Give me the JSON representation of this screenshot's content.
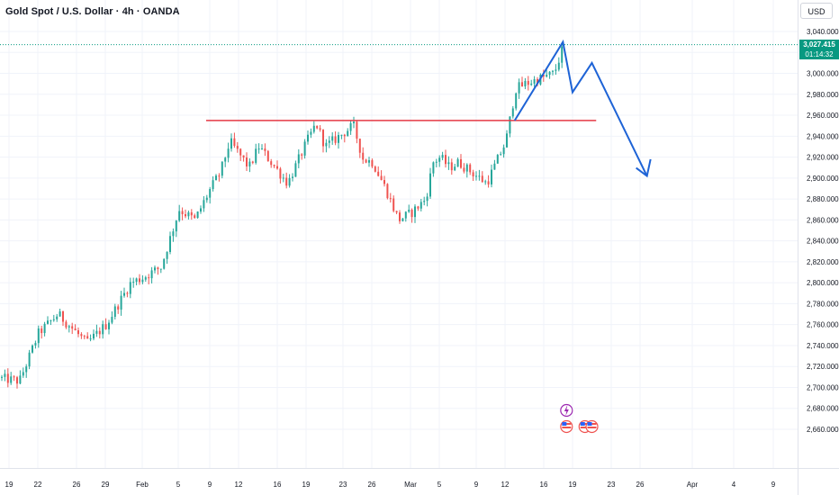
{
  "header": {
    "title": "Gold Spot / U.S. Dollar · 4h · OANDA",
    "currency_button": "USD"
  },
  "price_tag": {
    "price": "3,027.415",
    "countdown": "01:14:32"
  },
  "colors": {
    "up": "#26a69a",
    "down": "#ef5350",
    "projection": "#1e63d6",
    "resistance": "#e53945",
    "price_line": "#089981",
    "grid": "#f0f3fa"
  },
  "chart_data": {
    "type": "candlestick",
    "symbol": "XAUUSD",
    "timeframe": "4h",
    "y_axis": {
      "min": 2640,
      "max": 3050,
      "ticks": [
        2660,
        2680,
        2700,
        2720,
        2740,
        2760,
        2780,
        2800,
        2820,
        2840,
        2860,
        2880,
        2900,
        2920,
        2940,
        2960,
        2980,
        3000,
        3020,
        3040
      ],
      "tick_labels": [
        "2,660.000",
        "2,680.000",
        "2,700.000",
        "2,720.000",
        "2,740.000",
        "2,760.000",
        "2,780.000",
        "2,800.000",
        "2,820.000",
        "2,840.000",
        "2,860.000",
        "2,880.000",
        "2,900.000",
        "2,920.000",
        "2,940.000",
        "2,960.000",
        "2,980.000",
        "3,000.000",
        "3,020.000",
        "3,040.000"
      ]
    },
    "x_axis": {
      "tick_labels": [
        "19",
        "22",
        "26",
        "29",
        "Feb",
        "5",
        "9",
        "12",
        "16",
        "19",
        "23",
        "26",
        "Mar",
        "5",
        "9",
        "12",
        "16",
        "19",
        "23",
        "26",
        "Apr",
        "4",
        "9"
      ]
    },
    "close_trend": [
      {
        "date": "Jan 17",
        "price": 2710
      },
      {
        "date": "Jan 20",
        "price": 2706
      },
      {
        "date": "Jan 22",
        "price": 2752
      },
      {
        "date": "Jan 24",
        "price": 2770
      },
      {
        "date": "Jan 27",
        "price": 2742
      },
      {
        "date": "Jan 29",
        "price": 2760
      },
      {
        "date": "Jan 31",
        "price": 2800
      },
      {
        "date": "Feb 3",
        "price": 2815
      },
      {
        "date": "Feb 5",
        "price": 2870
      },
      {
        "date": "Feb 7",
        "price": 2860
      },
      {
        "date": "Feb 10",
        "price": 2905
      },
      {
        "date": "Feb 11",
        "price": 2935
      },
      {
        "date": "Feb 13",
        "price": 2910
      },
      {
        "date": "Feb 14",
        "price": 2930
      },
      {
        "date": "Feb 17",
        "price": 2895
      },
      {
        "date": "Feb 19",
        "price": 2935
      },
      {
        "date": "Feb 20",
        "price": 2952
      },
      {
        "date": "Feb 21",
        "price": 2930
      },
      {
        "date": "Feb 24",
        "price": 2950
      },
      {
        "date": "Feb 25",
        "price": 2918
      },
      {
        "date": "Feb 26",
        "price": 2915
      },
      {
        "date": "Feb 27",
        "price": 2890
      },
      {
        "date": "Feb 28",
        "price": 2860
      },
      {
        "date": "Mar 3",
        "price": 2880
      },
      {
        "date": "Mar 4",
        "price": 2915
      },
      {
        "date": "Mar 5",
        "price": 2920
      },
      {
        "date": "Mar 6",
        "price": 2910
      },
      {
        "date": "Mar 7",
        "price": 2915
      },
      {
        "date": "Mar 10",
        "price": 2895
      },
      {
        "date": "Mar 11",
        "price": 2915
      },
      {
        "date": "Mar 12",
        "price": 2935
      },
      {
        "date": "Mar 13",
        "price": 2985
      },
      {
        "date": "Mar 14",
        "price": 2990
      },
      {
        "date": "Mar 17",
        "price": 3000
      },
      {
        "date": "Mar 18",
        "price": 3027
      }
    ],
    "last_price": 3027.415,
    "resistance": {
      "price": 2955,
      "from": "Feb 9",
      "to": "Mar 22"
    },
    "projection": [
      {
        "date": "Mar 13",
        "price": 2955
      },
      {
        "date": "Mar 18",
        "price": 3030
      },
      {
        "date": "Mar 19",
        "price": 2982
      },
      {
        "date": "Mar 21",
        "price": 3010
      },
      {
        "date": "Mar 27",
        "price": 2902
      },
      {
        "date": "Mar 27",
        "price": 2918
      }
    ],
    "events": [
      {
        "type": "lightning",
        "date": "Mar 18"
      },
      {
        "type": "us-flag",
        "date": "Mar 18"
      },
      {
        "type": "us-flag",
        "date": "Mar 20"
      },
      {
        "type": "us-flag",
        "date": "Mar 21"
      }
    ]
  }
}
